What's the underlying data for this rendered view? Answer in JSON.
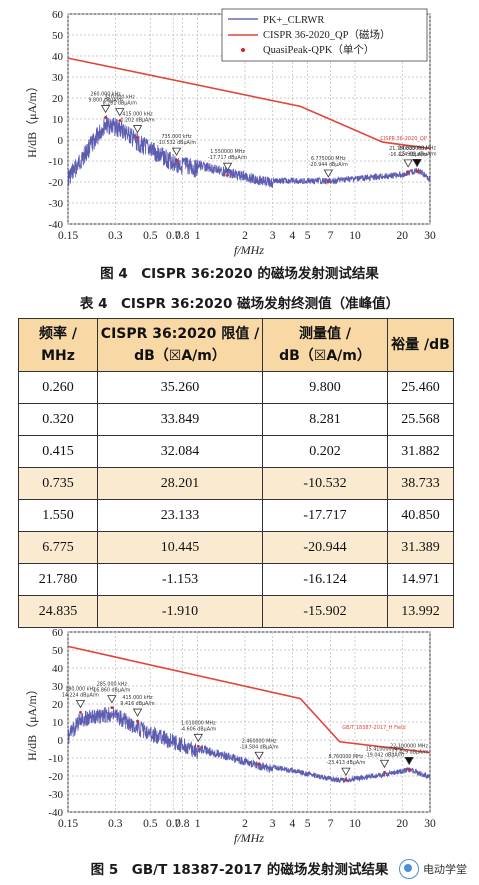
{
  "chart_data": [
    {
      "type": "line",
      "xscale": "log",
      "xlim": [
        0.15,
        30
      ],
      "ylim": [
        -40,
        60
      ],
      "xlabel": "f/MHz",
      "ylabel": "H/dB（μA/m）",
      "xticks": [
        "0.15",
        "0.3",
        "0.5",
        "0.7",
        "0.8",
        "1",
        "2",
        "3",
        "4",
        "5",
        "7",
        "10",
        "20",
        "30"
      ],
      "yticks": [
        60,
        50,
        40,
        30,
        20,
        10,
        0,
        -10,
        -20,
        -30,
        -40
      ],
      "legend": {
        "placement": "top-right",
        "entries": [
          "PK+_CLRWR",
          "CISPR 36-2020_QP（磁场）",
          "QuasiPeak-QPK（单个）"
        ]
      },
      "series": [
        {
          "name": "CISPR 36-2020_QP（磁场）",
          "color": "#e2443a",
          "points": [
            [
              0.15,
              39
            ],
            [
              4.5,
              16
            ],
            [
              15,
              -1
            ],
            [
              30,
              -4
            ]
          ]
        }
      ],
      "markers": [
        {
          "x": 0.26,
          "y": 9.8,
          "label": "260.000 kHz\n9.800 dBμA/m"
        },
        {
          "x": 0.32,
          "y": 8.281,
          "label": "320.000 kHz\n8.281 dBμA/m"
        },
        {
          "x": 0.415,
          "y": 0.202,
          "label": "415.000 kHz\n0.202 dBμA/m"
        },
        {
          "x": 0.735,
          "y": -10.532,
          "label": "735.000 kHz\n-10.532 dBμA/m"
        },
        {
          "x": 1.55,
          "y": -17.717,
          "label": "1.550000 MHz\n-17.717 dBμA/m"
        },
        {
          "x": 6.775,
          "y": -20.944,
          "label": "6.775000 MHz\n-20.944 dBμA/m"
        },
        {
          "x": 21.78,
          "y": -16.124,
          "label": "21.780000 MHz\n-16.124 dBμA/m"
        },
        {
          "x": 24.835,
          "y": -15.902,
          "label": "24.835000 MHz\n-15.902 dBμA/m"
        }
      ],
      "limit_label": "CISPR 36-2020_QP"
    },
    {
      "type": "line",
      "xscale": "log",
      "xlim": [
        0.15,
        30
      ],
      "ylim": [
        -40,
        60
      ],
      "xlabel": "f/MHz",
      "ylabel": "H/dB（μA/m）",
      "xticks": [
        "0.15",
        "0.3",
        "0.5",
        "0.7",
        "0.8",
        "1",
        "2",
        "3",
        "4",
        "5",
        "7",
        "10",
        "20",
        "30"
      ],
      "yticks": [
        60,
        50,
        40,
        30,
        20,
        10,
        0,
        -10,
        -20,
        -30,
        -40
      ],
      "series": [
        {
          "name": "GB/T 18387-2017",
          "color": "#e2443a",
          "points": [
            [
              0.15,
              52
            ],
            [
              4.5,
              23
            ],
            [
              8,
              -1
            ],
            [
              30,
              -7
            ]
          ]
        }
      ],
      "markers": [
        {
          "x": 0.18,
          "y": 14.224,
          "label": "180.000 kHz\n14.224 dBμA/m"
        },
        {
          "x": 0.285,
          "y": 16.86,
          "label": "285.000 kHz\n16.860 dBμA/m"
        },
        {
          "x": 0.415,
          "y": 9.416,
          "label": "415.000 kHz\n9.416 dBμA/m"
        },
        {
          "x": 1.01,
          "y": -4.606,
          "label": "1.010000 MHz\n-4.606 dBμA/m"
        },
        {
          "x": 2.46,
          "y": -14.584,
          "label": "2.460000 MHz\n-14.584 dBμA/m"
        },
        {
          "x": 8.76,
          "y": -23.413,
          "label": "8.760000 MHz\n-23.413 dBμA/m"
        },
        {
          "x": 15.41,
          "y": -19.042,
          "label": "15.410000 MHz\n-19.042 dBμA/m"
        },
        {
          "x": 22.1,
          "y": -17.429,
          "label": "22.100000 MHz\n-17.429 dBμA/m"
        }
      ],
      "limit_label": "GB/T 18387-2017_H Field"
    }
  ],
  "fig4_caption": "图 4　CISPR 36:2020 的磁场发射测试结果",
  "table4_caption": "表 4　CISPR 36:2020 磁场发射终测值（准峰值）",
  "table": {
    "headers": [
      [
        "频率 /",
        "MHz"
      ],
      [
        "CISPR 36:2020 限值 /",
        "dB（☒A/m）"
      ],
      [
        "测量值 /",
        "dB（☒A/m）"
      ],
      [
        "裕量 /dB",
        ""
      ]
    ],
    "rows": [
      [
        "0.260",
        "35.260",
        "9.800",
        "25.460"
      ],
      [
        "0.320",
        "33.849",
        "8.281",
        "25.568"
      ],
      [
        "0.415",
        "32.084",
        "0.202",
        "31.882"
      ],
      [
        "0.735",
        "28.201",
        "-10.532",
        "38.733"
      ],
      [
        "1.550",
        "23.133",
        "-17.717",
        "40.850"
      ],
      [
        "6.775",
        "10.445",
        "-20.944",
        "31.389"
      ],
      [
        "21.780",
        "-1.153",
        "-16.124",
        "14.971"
      ],
      [
        "24.835",
        "-1.910",
        "-15.902",
        "13.992"
      ]
    ]
  },
  "fig5_caption": "图 5　GB/T 18387-2017 的磁场发射测试结果",
  "watermark": "电动学堂"
}
